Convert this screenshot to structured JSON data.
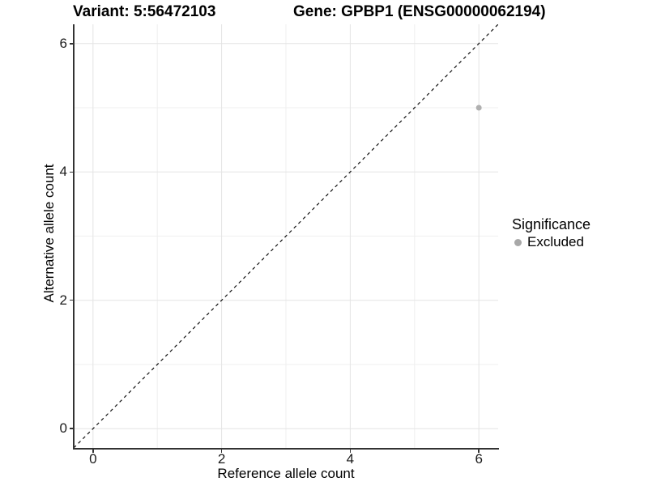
{
  "figure": {
    "title_left": "Variant: 5:56472103",
    "title_right": "Gene: GPBP1 (ENSG00000062194)"
  },
  "chart_data": {
    "type": "scatter",
    "xlabel": "Reference allele count",
    "ylabel": "Alternative allele count",
    "xlim": [
      -0.3,
      6.3
    ],
    "ylim": [
      -0.3,
      6.3
    ],
    "x_ticks": [
      0,
      2,
      4,
      6
    ],
    "y_ticks": [
      0,
      2,
      4,
      6
    ],
    "x_minor": [
      1,
      3,
      5
    ],
    "y_minor": [
      1,
      3,
      5
    ],
    "grid": "on",
    "reference_line": {
      "type": "abline",
      "intercept": 0,
      "slope": 1,
      "style": "dashed",
      "color": "#111111"
    },
    "series": [
      {
        "name": "Excluded",
        "color": "#b0b0b0",
        "points": [
          {
            "x": 6,
            "y": 5
          }
        ],
        "point_radius": 3.5
      }
    ],
    "legend": {
      "title": "Significance",
      "position": "right",
      "entries": [
        {
          "label": "Excluded",
          "color": "#a8a8a8"
        }
      ]
    }
  },
  "colors": {
    "axis_line": "#333333",
    "grid_major": "#e4e4e4",
    "grid_minor": "#efefef",
    "tick_text": "#1a1a1a"
  }
}
